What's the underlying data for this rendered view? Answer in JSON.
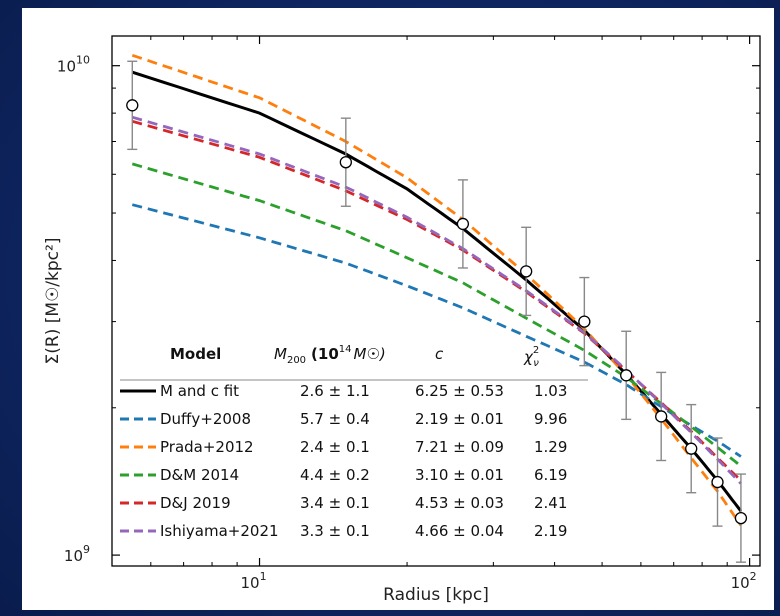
{
  "chart_data": {
    "type": "line",
    "xlabel": "Radius [kpc]",
    "ylabel": "Σ(R) [M☉/kpc²]",
    "xscale": "log",
    "yscale": "log",
    "xlim": [
      5.0,
      105
    ],
    "ylim": [
      950000000,
      11500000000
    ],
    "x_ticks": [
      {
        "value": 10,
        "label": "10",
        "exp": "1"
      },
      {
        "value": 100,
        "label": "10",
        "exp": "2"
      }
    ],
    "y_ticks": [
      {
        "value": 1000000000,
        "label": "10",
        "exp": "9"
      },
      {
        "value": 10000000000,
        "label": "10",
        "exp": "10"
      }
    ],
    "observations": {
      "x": [
        5.5,
        15,
        26,
        35,
        46,
        56,
        66,
        76,
        86,
        96
      ],
      "y": [
        8300000000,
        6350000000,
        4750000000,
        3800000000,
        3000000000,
        2330000000,
        1920000000,
        1650000000,
        1410000000,
        1190000000
      ],
      "yerr": [
        0.09,
        0.09,
        0.09,
        0.09,
        0.09,
        0.09,
        0.09,
        0.09,
        0.09,
        0.09
      ]
    },
    "series": [
      {
        "name": "M and c fit",
        "color": "#000000",
        "dashed": false,
        "x": [
          5.5,
          10,
          15,
          20,
          26,
          35,
          46,
          56,
          66,
          76,
          86,
          96
        ],
        "y": [
          9700000000,
          8000000000,
          6600000000,
          5600000000,
          4650000000,
          3650000000,
          2880000000,
          2340000000,
          1940000000,
          1650000000,
          1420000000,
          1230000000
        ]
      },
      {
        "name": "Duffy+2008",
        "color": "#1f77b4",
        "dashed": true,
        "x": [
          5.5,
          10,
          15,
          20,
          26,
          35,
          46,
          56,
          66,
          76,
          86,
          96
        ],
        "y": [
          5200000000,
          4450000000,
          3950000000,
          3550000000,
          3200000000,
          2800000000,
          2480000000,
          2230000000,
          2010000000,
          1840000000,
          1710000000,
          1590000000
        ]
      },
      {
        "name": "Prada+2012",
        "color": "#ff7f0e",
        "dashed": true,
        "x": [
          5.5,
          10,
          15,
          20,
          26,
          35,
          46,
          56,
          66,
          76,
          86,
          96
        ],
        "y": [
          10500000000,
          8600000000,
          7000000000,
          5900000000,
          4850000000,
          3750000000,
          2900000000,
          2330000000,
          1900000000,
          1580000000,
          1350000000,
          1150000000
        ]
      },
      {
        "name": "D&M 2014",
        "color": "#2ca02c",
        "dashed": true,
        "x": [
          5.5,
          10,
          15,
          20,
          26,
          35,
          46,
          56,
          66,
          76,
          86,
          96
        ],
        "y": [
          6300000000,
          5300000000,
          4600000000,
          4050000000,
          3600000000,
          3050000000,
          2620000000,
          2310000000,
          2040000000,
          1830000000,
          1660000000,
          1520000000
        ]
      },
      {
        "name": "D&J 2019",
        "color": "#d62728",
        "dashed": true,
        "x": [
          5.5,
          10,
          15,
          20,
          26,
          35,
          46,
          56,
          66,
          76,
          86,
          96
        ],
        "y": [
          7700000000,
          6500000000,
          5550000000,
          4850000000,
          4200000000,
          3450000000,
          2840000000,
          2380000000,
          2050000000,
          1790000000,
          1580000000,
          1420000000
        ]
      },
      {
        "name": "Ishiyama+2021",
        "color": "#9467bd",
        "dashed": true,
        "x": [
          5.5,
          10,
          15,
          20,
          26,
          35,
          46,
          56,
          66,
          76,
          86,
          96
        ],
        "y": [
          7850000000,
          6600000000,
          5650000000,
          4900000000,
          4230000000,
          3470000000,
          2850000000,
          2390000000,
          2040000000,
          1780000000,
          1570000000,
          1400000000
        ]
      }
    ],
    "table": {
      "headers": {
        "model": "Model",
        "m200": "M",
        "m200_sub": "200",
        "m200_unit": "(10",
        "m200_exp": "14",
        "m200_unit_end": "M☉)",
        "c": "c",
        "chi": "χ",
        "chi_sup": "2",
        "chi_sub": "ν"
      },
      "rows": [
        {
          "label": "M and c fit",
          "m200": "2.6 ± 1.1",
          "c": "6.25 ± 0.53",
          "chi2": "1.03"
        },
        {
          "label": "Duffy+2008",
          "m200": "5.7 ± 0.4",
          "c": "2.19 ± 0.01",
          "chi2": "9.96"
        },
        {
          "label": "Prada+2012",
          "m200": "2.4 ± 0.1",
          "c": "7.21 ± 0.09",
          "chi2": "1.29"
        },
        {
          "label": "D&M 2014",
          "m200": "4.4 ± 0.2",
          "c": "3.10 ± 0.01",
          "chi2": "6.19"
        },
        {
          "label": "D&J 2019",
          "m200": "3.4 ± 0.1",
          "c": "4.53 ± 0.03",
          "chi2": "2.41"
        },
        {
          "label": "Ishiyama+2021",
          "m200": "3.3 ± 0.1",
          "c": "4.66 ± 0.04",
          "chi2": "2.19"
        }
      ]
    }
  }
}
